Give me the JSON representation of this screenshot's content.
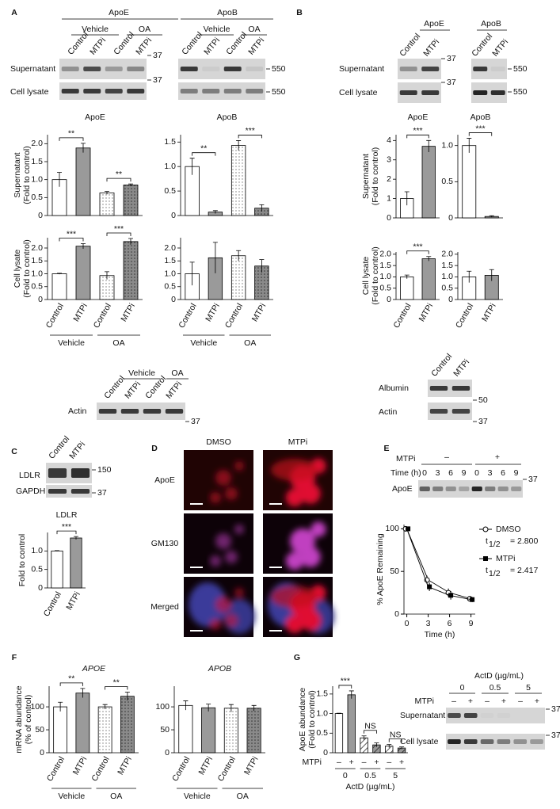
{
  "panels": {
    "A": {
      "label": "A",
      "blots": {
        "titles": [
          "ApoE",
          "ApoB"
        ],
        "groups": [
          "Vehicle",
          "OA"
        ],
        "lanes": [
          "Control",
          "MTPi",
          "Control",
          "MTPi"
        ],
        "rows": [
          "Supernatant",
          "Cell lysate"
        ],
        "apoe_markers": [
          "37",
          "37"
        ],
        "apob_markers": [
          "550",
          "550"
        ]
      },
      "charts": [
        {
          "title": "ApoE",
          "ylabel": [
            "Supernatant",
            "(Fold to control)"
          ],
          "ylim": [
            0,
            2.25
          ],
          "yticks": [
            0,
            0.5,
            {
              "value": 1,
              "label": "1.0"
            },
            1.5,
            {
              "value": 2,
              "label": "2.0"
            }
          ],
          "values": [
            1.0,
            1.88,
            0.63,
            0.85
          ],
          "errors": [
            0.2,
            0.13,
            0.04,
            0.03
          ],
          "fills": [
            "#ffffff",
            "#9a9a9a",
            "dots-light",
            "dots-dark"
          ],
          "sig": [
            "**",
            "**"
          ]
        },
        {
          "title": "ApoB",
          "ylim": [
            0,
            1.65
          ],
          "yticks": [
            0,
            0.5,
            {
              "value": 1,
              "label": "1.0"
            },
            1.5
          ],
          "values": [
            1.0,
            0.07,
            1.43,
            0.15
          ],
          "errors": [
            0.17,
            0.03,
            0.1,
            0.07
          ],
          "fills": [
            "#ffffff",
            "#9a9a9a",
            "dots-light",
            "dots-dark"
          ],
          "sig": [
            "**",
            "***"
          ]
        },
        {
          "ylabel": [
            "Cell lysate",
            "(Fold to control)"
          ],
          "ylim": [
            0,
            2.4
          ],
          "yticks": [
            0,
            0.5,
            {
              "value": 1,
              "label": "1.0"
            },
            1.5,
            {
              "value": 2,
              "label": "2.0"
            }
          ],
          "values": [
            1.0,
            2.07,
            0.93,
            2.25
          ],
          "errors": [
            0.02,
            0.1,
            0.15,
            0.12
          ],
          "fills": [
            "#ffffff",
            "#9a9a9a",
            "dots-light",
            "dots-dark"
          ],
          "sig": [
            "***",
            "***"
          ],
          "categories": [
            "Control",
            "MTPi",
            "Control",
            "MTPi"
          ],
          "groups": [
            "Vehicle",
            "OA"
          ]
        },
        {
          "ylim": [
            0,
            2.4
          ],
          "yticks": [
            0,
            0.5,
            {
              "value": 1,
              "label": "1.0"
            },
            1.5,
            {
              "value": 2,
              "label": "2.0"
            }
          ],
          "values": [
            1.0,
            1.62,
            1.7,
            1.3
          ],
          "errors": [
            0.45,
            0.6,
            0.2,
            0.25
          ],
          "fills": [
            "#ffffff",
            "#9a9a9a",
            "dots-light",
            "dots-dark"
          ],
          "categories": [
            "Control",
            "MTPi",
            "Control",
            "MTPi"
          ],
          "groups": [
            "Vehicle",
            "OA"
          ]
        }
      ],
      "actin": {
        "groups": [
          "Vehicle",
          "OA"
        ],
        "lanes": [
          "Control",
          "MTPi",
          "Control",
          "MTPi"
        ],
        "row": "Actin",
        "marker": "37"
      }
    },
    "B": {
      "label": "B",
      "blots": {
        "titles": [
          "ApoE",
          "ApoB"
        ],
        "lanes": [
          "Control",
          "MTPi"
        ],
        "rows": [
          "Supernatant",
          "Cell lysate"
        ],
        "apoe_markers": [
          "37",
          "37"
        ],
        "apob_markers": [
          "550",
          "550"
        ]
      },
      "charts": [
        {
          "title": "ApoE",
          "ylabel": [
            "Supernatant",
            "(Fold to control)"
          ],
          "ylim": [
            0,
            4.3
          ],
          "yticks": [
            0,
            1,
            2,
            3,
            4
          ],
          "values": [
            1.0,
            3.7
          ],
          "errors": [
            0.35,
            0.3
          ],
          "fills": [
            "#ffffff",
            "#9a9a9a"
          ],
          "sig": [
            "***"
          ]
        },
        {
          "title": "ApoB",
          "ylim": [
            0,
            1.15
          ],
          "yticks": [
            0,
            0.5,
            {
              "value": 1,
              "label": "1.0"
            }
          ],
          "values": [
            1.0,
            0.02
          ],
          "errors": [
            0.1,
            0.01
          ],
          "fills": [
            "#ffffff",
            "#9a9a9a"
          ],
          "sig": [
            "***"
          ]
        },
        {
          "ylabel": [
            "Cell lysate",
            "(Fold to control)"
          ],
          "ylim": [
            0,
            2.1
          ],
          "yticks": [
            0,
            0.5,
            {
              "value": 1,
              "label": "1.0"
            },
            1.5,
            {
              "value": 2,
              "label": "2.0"
            }
          ],
          "values": [
            1.0,
            1.8
          ],
          "errors": [
            0.08,
            0.1
          ],
          "fills": [
            "#ffffff",
            "#9a9a9a"
          ],
          "sig": [
            "***"
          ],
          "categories": [
            "Control",
            "MTPi"
          ]
        },
        {
          "ylim": [
            0,
            2.1
          ],
          "yticks": [
            0,
            0.5,
            {
              "value": 1,
              "label": "1.0"
            },
            1.5,
            {
              "value": 2,
              "label": "2.0"
            }
          ],
          "values": [
            1.0,
            1.07
          ],
          "errors": [
            0.25,
            0.25
          ],
          "fills": [
            "#ffffff",
            "#9a9a9a"
          ],
          "categories": [
            "Control",
            "MTPi"
          ]
        }
      ],
      "loading": {
        "lanes": [
          "Control",
          "MTPi"
        ],
        "rows": [
          "Albumin",
          "Actin"
        ],
        "markers": [
          "50",
          "37"
        ]
      }
    },
    "C": {
      "label": "C",
      "blot": {
        "lanes": [
          "Control",
          "MTPi"
        ],
        "rows": [
          "LDLR",
          "GAPDH"
        ],
        "markers": [
          "150",
          "37"
        ]
      },
      "chart": {
        "title": "LDLR",
        "ylabel": [
          "Fold to control"
        ],
        "ylim": [
          0,
          1.5
        ],
        "yticks": [
          0,
          0.5,
          {
            "value": 1,
            "label": "1.0"
          }
        ],
        "values": [
          1.0,
          1.35
        ],
        "errors": [
          0.01,
          0.04
        ],
        "fills": [
          "#ffffff",
          "#9a9a9a"
        ],
        "sig": [
          "***"
        ],
        "categories": [
          "Control",
          "MTPi"
        ]
      }
    },
    "D": {
      "label": "D",
      "columns": [
        "DMSO",
        "MTPi"
      ],
      "rows": [
        "ApoE",
        "GM130",
        "Merged"
      ]
    },
    "E": {
      "label": "E",
      "blot": {
        "mtpi_label": "MTPi",
        "signs": [
          "–",
          "+"
        ],
        "time_label": "Time (h)",
        "times": [
          "0",
          "3",
          "6",
          "9",
          "0",
          "3",
          "6",
          "9"
        ],
        "row": "ApoE",
        "marker": "37"
      },
      "chart": {
        "ylabel": "% ApoE Remaining",
        "xlabel": "Time (h)",
        "xlim": [
          -0.4,
          9.6
        ],
        "xticks": [
          0,
          3,
          6,
          9
        ],
        "ylim": [
          0,
          105
        ],
        "yticks": [
          0,
          50,
          100
        ],
        "x": [
          0,
          3,
          6,
          9
        ],
        "series": [
          {
            "name": "DMSO",
            "marker": "circle-open",
            "values": [
              100,
              40,
              25,
              18
            ],
            "errors": [
              0,
              5,
              5,
              3
            ],
            "half_life": {
              "t": "t",
              "sub": "1/2",
              "value": "= 2.800"
            }
          },
          {
            "name": "MTPi",
            "marker": "square",
            "values": [
              100,
              32,
              22,
              17
            ],
            "errors": [
              0,
              5,
              5,
              3
            ],
            "half_life": {
              "t": "t",
              "sub": "1/2",
              "value": "= 2.417"
            }
          }
        ]
      }
    },
    "F": {
      "label": "F",
      "charts": [
        {
          "title": "APOE",
          "italic": true,
          "ylabel": [
            "mRNA abundance",
            "(% of control)"
          ],
          "ylim": [
            0,
            145
          ],
          "yticks": [
            0,
            50,
            100
          ],
          "values": [
            100,
            130,
            100,
            123
          ],
          "errors": [
            10,
            10,
            5,
            9
          ],
          "fills": [
            "#ffffff",
            "#9a9a9a",
            "dots-light",
            "dots-dark"
          ],
          "sig": [
            "**",
            "**"
          ],
          "categories": [
            "Control",
            "MTPi",
            "Control",
            "MTPi"
          ],
          "groups": [
            "Vehicle",
            "OA"
          ]
        },
        {
          "title": "APOB",
          "italic": true,
          "ylim": [
            0,
            145
          ],
          "yticks": [
            0,
            50,
            100
          ],
          "values": [
            103,
            98,
            97,
            97
          ],
          "errors": [
            10,
            8,
            8,
            6
          ],
          "fills": [
            "#ffffff",
            "#9a9a9a",
            "dots-light",
            "dots-dark"
          ],
          "categories": [
            "Control",
            "MTPi",
            "Control",
            "MTPi"
          ],
          "groups": [
            "Vehicle",
            "OA"
          ]
        }
      ]
    },
    "G": {
      "label": "G",
      "chart": {
        "ylabel": [
          "ApoE abundance",
          "(Fold to control)"
        ],
        "ylim": [
          0,
          1.7
        ],
        "yticks": [
          0,
          0.5,
          {
            "value": 1,
            "label": "1.0"
          },
          1.5
        ],
        "values": [
          1.0,
          1.48,
          0.38,
          0.2,
          0.17,
          0.12
        ],
        "errors": [
          0.01,
          0.1,
          0.05,
          0.05,
          0.04,
          0.03
        ],
        "fills": [
          "#ffffff",
          "#9a9a9a",
          "hatch-light",
          "hatch-dark",
          "hatch-light",
          "hatch-dark"
        ],
        "sig": [
          "***",
          "NS",
          "NS"
        ],
        "row_label": "MTPi",
        "categories": [
          "–",
          "+",
          "–",
          "+",
          "–",
          "+"
        ],
        "groups": [
          "0",
          "0.5",
          "5"
        ],
        "xlabel": "ActD (µg/mL)"
      },
      "blot": {
        "actd_label": "ActD (µg/mL)",
        "doses": [
          "0",
          "0.5",
          "5"
        ],
        "mtpi_label": "MTPi",
        "signs": [
          "–",
          "+",
          "–",
          "+",
          "–",
          "+"
        ],
        "rows": [
          "Supernatant",
          "Cell lysate"
        ],
        "markers": [
          "37",
          "37"
        ]
      }
    }
  }
}
